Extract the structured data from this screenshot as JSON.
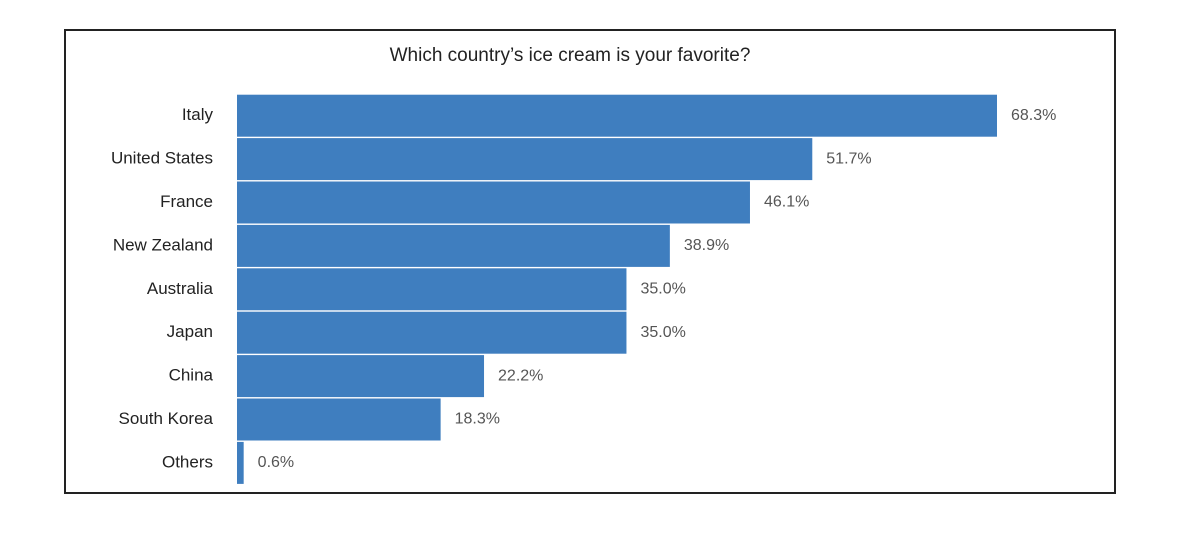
{
  "chart_data": {
    "type": "bar",
    "orientation": "horizontal",
    "title": "Which country’s ice cream is your favorite?",
    "categories": [
      "Italy",
      "United States",
      "France",
      "New Zealand",
      "Australia",
      "Japan",
      "China",
      "South Korea",
      "Others"
    ],
    "values": [
      68.3,
      51.7,
      46.1,
      38.9,
      35.0,
      35.0,
      22.2,
      18.3,
      0.6
    ],
    "value_labels": [
      "68.3%",
      "51.7%",
      "46.1%",
      "38.9%",
      "35.0%",
      "35.0%",
      "22.2%",
      "18.3%",
      "0.6%"
    ],
    "color": "#3f7ebf"
  }
}
